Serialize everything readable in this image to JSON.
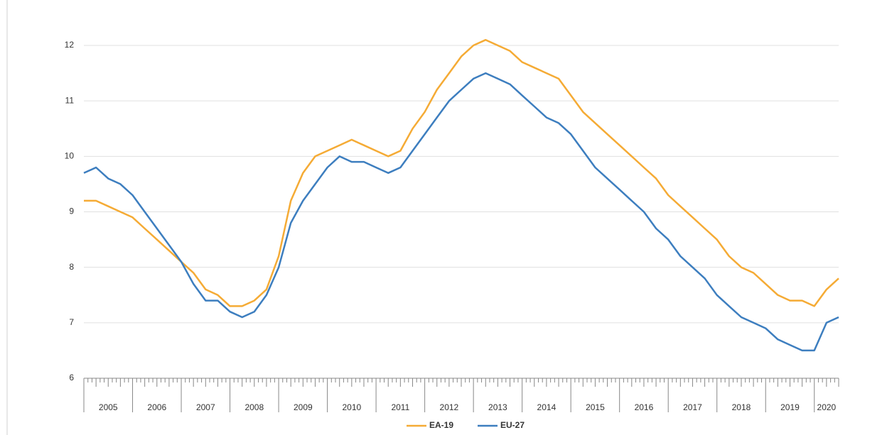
{
  "chart_data": {
    "type": "line",
    "x": [
      2005,
      2005.25,
      2005.5,
      2005.75,
      2006,
      2006.25,
      2006.5,
      2006.75,
      2007,
      2007.25,
      2007.5,
      2007.75,
      2008,
      2008.25,
      2008.5,
      2008.75,
      2009,
      2009.25,
      2009.5,
      2009.75,
      2010,
      2010.25,
      2010.5,
      2010.75,
      2011,
      2011.25,
      2011.5,
      2011.75,
      2012,
      2012.25,
      2012.5,
      2012.75,
      2013,
      2013.25,
      2013.5,
      2013.75,
      2014,
      2014.25,
      2014.5,
      2014.75,
      2015,
      2015.25,
      2015.5,
      2015.75,
      2016,
      2016.25,
      2016.5,
      2016.75,
      2017,
      2017.25,
      2017.5,
      2017.75,
      2018,
      2018.25,
      2018.5,
      2018.75,
      2019,
      2019.25,
      2019.5,
      2019.75,
      2020,
      2020.25,
      2020.5
    ],
    "series": [
      {
        "name": "EA-19",
        "color": "#f5ab35",
        "values": [
          9.2,
          9.2,
          9.1,
          9.0,
          8.9,
          8.7,
          8.5,
          8.3,
          8.1,
          7.9,
          7.6,
          7.5,
          7.3,
          7.3,
          7.4,
          7.6,
          8.2,
          9.2,
          9.7,
          10.0,
          10.1,
          10.2,
          10.3,
          10.2,
          10.1,
          10.0,
          10.1,
          10.5,
          10.8,
          11.2,
          11.5,
          11.8,
          12.0,
          12.1,
          12.0,
          11.9,
          11.7,
          11.6,
          11.5,
          11.4,
          11.1,
          10.8,
          10.6,
          10.4,
          10.2,
          10.0,
          9.8,
          9.6,
          9.3,
          9.1,
          8.9,
          8.7,
          8.5,
          8.2,
          8.0,
          7.9,
          7.7,
          7.5,
          7.4,
          7.4,
          7.3,
          7.6,
          7.8
        ]
      },
      {
        "name": "EU-27",
        "color": "#3d7ebf",
        "values": [
          9.7,
          9.8,
          9.6,
          9.5,
          9.3,
          9.0,
          8.7,
          8.4,
          8.1,
          7.7,
          7.4,
          7.4,
          7.2,
          7.1,
          7.2,
          7.5,
          8.0,
          8.8,
          9.2,
          9.5,
          9.8,
          10.0,
          9.9,
          9.9,
          9.8,
          9.7,
          9.8,
          10.1,
          10.4,
          10.7,
          11.0,
          11.2,
          11.4,
          11.5,
          11.4,
          11.3,
          11.1,
          10.9,
          10.7,
          10.6,
          10.4,
          10.1,
          9.8,
          9.6,
          9.4,
          9.2,
          9.0,
          8.7,
          8.5,
          8.2,
          8.0,
          7.8,
          7.5,
          7.3,
          7.1,
          7.0,
          6.9,
          6.7,
          6.6,
          6.5,
          6.5,
          7.0,
          7.1
        ]
      }
    ],
    "xlim": [
      2005,
      2020.5
    ],
    "xticks": [
      {
        "value": 2005.5,
        "label": "2005"
      },
      {
        "value": 2006.5,
        "label": "2006"
      },
      {
        "value": 2007.5,
        "label": "2007"
      },
      {
        "value": 2008.5,
        "label": "2008"
      },
      {
        "value": 2009.5,
        "label": "2009"
      },
      {
        "value": 2010.5,
        "label": "2010"
      },
      {
        "value": 2011.5,
        "label": "2011"
      },
      {
        "value": 2012.5,
        "label": "2012"
      },
      {
        "value": 2013.5,
        "label": "2013"
      },
      {
        "value": 2014.5,
        "label": "2014"
      },
      {
        "value": 2015.5,
        "label": "2015"
      },
      {
        "value": 2016.5,
        "label": "2016"
      },
      {
        "value": 2017.5,
        "label": "2017"
      },
      {
        "value": 2018.5,
        "label": "2018"
      },
      {
        "value": 2019.5,
        "label": "2019"
      },
      {
        "value": 2020.25,
        "label": "2020"
      }
    ],
    "ylim": [
      6,
      12
    ],
    "yticks": [
      6,
      7,
      8,
      9,
      10,
      11,
      12
    ],
    "grid": true,
    "legend": "bottom"
  }
}
